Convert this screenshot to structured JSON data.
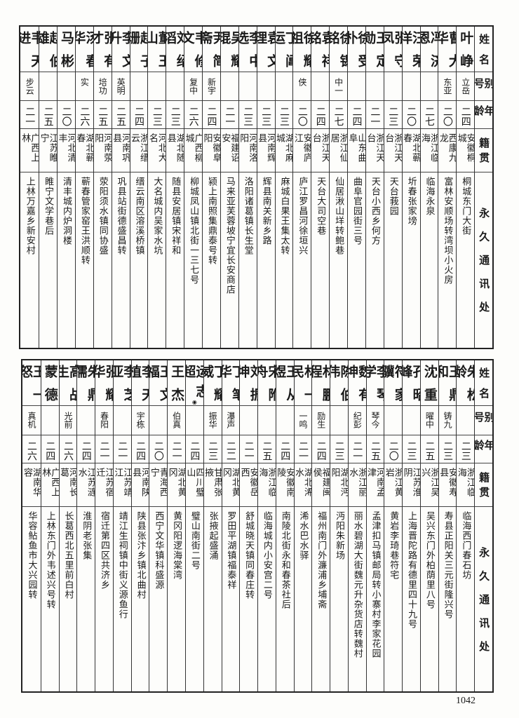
{
  "headers": {
    "name": "姓名",
    "alias": "别号",
    "age": "年龄",
    "origin": "籍贯",
    "address": "永久通讯处"
  },
  "top_table": [
    {
      "name": "叶峥",
      "alias": "立岳",
      "age": "二四",
      "origin": "安徽桐城",
      "address": "桐城东门大街"
    },
    {
      "name": "曹大华",
      "alias": "东亚",
      "age": "二〇",
      "origin": "西康九龙",
      "address": "富林安顺场转湾坝小火房"
    },
    {
      "name": "冯济恩",
      "alias": "",
      "age": "二七",
      "origin": "浙江临海",
      "address": "临海永泉"
    },
    {
      "name": "汪荣洋",
      "alias": "",
      "age": "二〇",
      "origin": "湖北蕲春",
      "address": "圻春张家塝"
    },
    {
      "name": "张守凤",
      "alias": "",
      "age": "二三",
      "origin": "浙江天台",
      "address": "天台莪园"
    },
    {
      "name": "王定勋",
      "alias": "",
      "age": "二一",
      "origin": "浙江天台",
      "address": "天台小西乡何方"
    },
    {
      "name": "徐受朴",
      "alias": "",
      "age": "二四",
      "origin": "山东曲阜",
      "address": "曲阜官园街三号"
    },
    {
      "name": "徐锡铭",
      "alias": "中一",
      "age": "二七",
      "origin": "浙江仙居",
      "address": "仙居湫山垟转鲍巷"
    },
    {
      "name": "袁祥铭",
      "alias": "",
      "age": "二四",
      "origin": "浙江天台",
      "address": "天台大司空巷"
    },
    {
      "name": "徐耀祖",
      "alias": "侠",
      "age": "二〇",
      "origin": "安徽庐江",
      "address": "庐江罗昌河徐垣兴"
    },
    {
      "name": "丁阊运",
      "alias": "",
      "age": "二三",
      "origin": "湖北麻城",
      "address": "麻城白果王集太转"
    },
    {
      "name": "袁文理",
      "alias": "",
      "age": "二三",
      "origin": "河南辉县",
      "address": "辉县南关新乡路"
    },
    {
      "name": "李中选",
      "alias": "",
      "age": "二三",
      "origin": "河南洛阳",
      "address": "洛阳诸葛镇长生堂"
    },
    {
      "name": "吴耀琨",
      "alias": "",
      "age": "二一",
      "origin": "福建诏安",
      "address": "马来亚芙蓉坡宁宜长安商店"
    },
    {
      "name": "尹简斋",
      "alias": "新宇",
      "age": "二四",
      "origin": "安徽阜阳",
      "address": "颍上南照集鼎泰号转"
    },
    {
      "name": "韦修文",
      "alias": "复中",
      "age": "二六",
      "origin": "广西柳城",
      "address": "柳城凤山镇北街一三七号"
    },
    {
      "name": "刘绍滔",
      "alias": "",
      "age": "二三",
      "origin": "湖北随县",
      "address": "随县安居镇宋祥和"
    },
    {
      "name": "董玉山",
      "alias": "",
      "age": "二三",
      "origin": "河北大名",
      "address": "大名城内吴家水坑"
    },
    {
      "name": "赵子珊",
      "alias": "",
      "age": "二四",
      "origin": "浙江缙云",
      "address": "缙云南区溶溪桥镇"
    },
    {
      "name": "李文升",
      "alias": "英明",
      "age": "二五",
      "origin": "河南巩县",
      "address": "巩县站街德盛昌转"
    },
    {
      "name": "张有才",
      "alias": "培功",
      "age": "二五",
      "origin": "河南荥阳",
      "address": "荥阳须水镇同协盛"
    },
    {
      "name": "汤春华",
      "alias": "实",
      "age": "二六",
      "origin": "湖北蕲春",
      "address": "蕲春管家窑王洪顺转"
    },
    {
      "name": "马彬",
      "alias": "",
      "age": "二〇",
      "origin": "河北清丰",
      "address": "清丰城内炉洞楼"
    },
    {
      "name": "赵伯雄",
      "alias": "",
      "age": "二五",
      "origin": "江苏睢宁",
      "address": "睢宁文学巷后"
    },
    {
      "name": "韦天进",
      "alias": "步云",
      "age": "二一",
      "origin": "广西上林",
      "address": "上林万嘉乡新安村"
    }
  ],
  "bottom_table": [
    {
      "name": "朱松龄",
      "alias": "",
      "age": "二三",
      "origin": "浙江临海",
      "address": "临海西门春石坊"
    },
    {
      "name": "王鼎和",
      "alias": "铸九",
      "age": "二三",
      "origin": "安徽寿县",
      "address": "寿县正阳关三元街隆兴号"
    },
    {
      "name": "沈重",
      "alias": "曜中",
      "age": "二五",
      "origin": "浙江吴兴",
      "address": "吴兴东门外柏荫里八号"
    },
    {
      "name": "孔昭峰",
      "alias": "",
      "age": "二三",
      "origin": "江苏淮阴",
      "address": "上海晋陀路有德里四十九号"
    },
    {
      "name": "符家骥",
      "alias": "",
      "age": "二〇",
      "origin": "浙江黄岩",
      "address": "黄岩李琦巷符宅"
    },
    {
      "name": "李琴学",
      "alias": "琴今",
      "age": "二五",
      "origin": "河南孟津",
      "address": "孟津扣马镇邮局转小寨村李家花园"
    },
    {
      "name": "魏有坤",
      "alias": "纪彭",
      "age": "二一",
      "origin": "浙江丽水",
      "address": "丽水碧湖大街魏元升杂货店转魏村"
    },
    {
      "name": "陈伯伟",
      "alias": "",
      "age": "二三",
      "origin": "湖北沔阳",
      "address": "沔阳朱新场"
    },
    {
      "name": "林鹏程",
      "alias": "励生",
      "age": "二四",
      "origin": "福建闽侯",
      "address": "福州南门外濂浦乡埔斋"
    },
    {
      "name": "林一民",
      "alias": "一鸣",
      "age": "二一",
      "origin": "湖北浠水",
      "address": "浠水巴水驿"
    },
    {
      "name": "王从煜",
      "alias": "",
      "age": "二四",
      "origin": "安徽南陵",
      "address": "南陵北街永和春茶社后"
    },
    {
      "name": "宋附舟",
      "alias": "",
      "age": "二五",
      "origin": "浙江临海",
      "address": "临海城内小安宫二号"
    },
    {
      "name": "刘振坤",
      "alias": "",
      "age": "二一",
      "origin": "安徽岳西",
      "address": "舒城晓天镇同春庄转"
    },
    {
      "name": "丁笔华",
      "alias": "瀑声",
      "age": "二二",
      "origin": "湖北黄冈",
      "address": "罗田平湖镇福泰祥"
    },
    {
      "name": "丁耀威",
      "alias": "振华",
      "age": "二三",
      "origin": "甘肃张掖",
      "address": "张掖起盛涌"
    },
    {
      "name": "运志超",
      "alias": "",
      "age": "二四",
      "origin": "四川璧山",
      "address": "璧山南街二号"
    },
    {
      "name": "王杰",
      "alias": "伯真",
      "age": "二一",
      "origin": "湖北黄冈",
      "address": "黄冈阳逻海棠湾"
    },
    {
      "name": "王文福",
      "alias": "",
      "age": "二〇",
      "origin": "青海西宁",
      "address": "西宁文华镇科盛源"
    },
    {
      "name": "李天植",
      "alias": "宇栋",
      "age": "二四",
      "origin": "河南陕县",
      "address": "陕县张汴乡镇北曲村"
    },
    {
      "name": "李芝亚",
      "alias": "",
      "age": "二一",
      "origin": "江苏靖江",
      "address": "靖江生祠镇中街义源鱼行"
    },
    {
      "name": "张耀华",
      "alias": "春阳",
      "age": "二一",
      "origin": "江苏宿迁",
      "address": "宿迁第四区共济乡"
    },
    {
      "name": "朱鼎儒",
      "alias": "",
      "age": "二四",
      "origin": "江苏涟水",
      "address": "淮阴老张集"
    },
    {
      "name": "高战生",
      "alias": "光前",
      "age": "二六",
      "origin": "河南长葛",
      "address": "长葛西北五里前白村"
    },
    {
      "name": "蒙德",
      "alias": "",
      "age": "二四",
      "origin": "广西上林",
      "address": "上林东门外韦述兴号转"
    },
    {
      "name": "王一怒",
      "alias": "真机",
      "age": "二六",
      "origin": "湖南华容",
      "address": "华容鲇鱼市大兴园转"
    }
  ],
  "page_number": "1042"
}
